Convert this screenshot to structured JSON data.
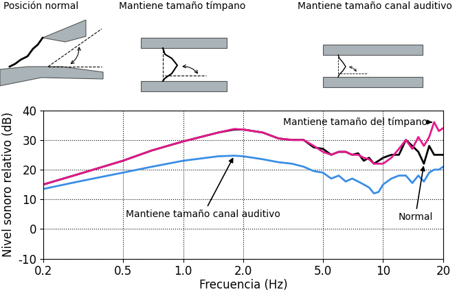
{
  "diagram": {
    "panels": [
      "Posición normal",
      "Mantiene tamaño tímpano",
      "Mantiene tamaño canal auditivo"
    ]
  },
  "chart_data": {
    "type": "line",
    "xlabel": "Frecuencia (Hz)",
    "ylabel": "Nivel sonoro relativo (dB)",
    "log": "x",
    "grid": true,
    "xlim": [
      0.2,
      20
    ],
    "xticks": [
      0.2,
      0.5,
      {
        "value": 1,
        "label": "1.0"
      },
      {
        "value": 2,
        "label": "2.0"
      },
      {
        "value": 5,
        "label": "5.0"
      },
      10,
      20
    ],
    "ylim": [
      -10,
      40
    ],
    "yticks": [
      -10,
      0,
      10,
      20,
      30,
      40
    ],
    "x": [
      0.2,
      0.3,
      0.5,
      0.7,
      1.0,
      1.5,
      1.8,
      2.0,
      2.5,
      3.0,
      3.5,
      4.0,
      4.5,
      5.0,
      5.5,
      6.0,
      6.5,
      7.0,
      7.5,
      8.0,
      8.5,
      9.0,
      9.5,
      10,
      11,
      12,
      13,
      14,
      15,
      16,
      17,
      18,
      19,
      20
    ],
    "series": [
      {
        "name": "Normal",
        "color": "#000000",
        "values": [
          15,
          18.5,
          23,
          26.5,
          29.5,
          32.5,
          33.5,
          33.5,
          32.5,
          30.5,
          30,
          30,
          27.5,
          27,
          25,
          26,
          26,
          25,
          25.5,
          23,
          24,
          22,
          23,
          24,
          25,
          25,
          30,
          28,
          26,
          22,
          28,
          25,
          25,
          25
        ]
      },
      {
        "name": "Mantiene tamaño del tímpano",
        "color": "#e6198c",
        "values": [
          15,
          18.5,
          23,
          26.5,
          29.5,
          32.5,
          33.7,
          33.5,
          32.5,
          30.5,
          30,
          30,
          28,
          26,
          25,
          26,
          26,
          25,
          25,
          24,
          23.5,
          22,
          22,
          22,
          24,
          27,
          30,
          27,
          31,
          28,
          31,
          36,
          33,
          34
        ]
      },
      {
        "name": "Mantiene tamaño canal auditivo",
        "color": "#3a8ee6",
        "values": [
          13.5,
          16,
          19,
          21,
          23,
          24.5,
          24.7,
          24.5,
          23.5,
          22.5,
          22,
          21,
          19.5,
          19,
          17,
          18,
          16,
          17,
          16,
          15,
          14,
          12,
          12.5,
          15,
          17,
          18,
          18,
          15.5,
          18,
          16,
          19,
          20,
          20,
          21
        ]
      }
    ]
  }
}
